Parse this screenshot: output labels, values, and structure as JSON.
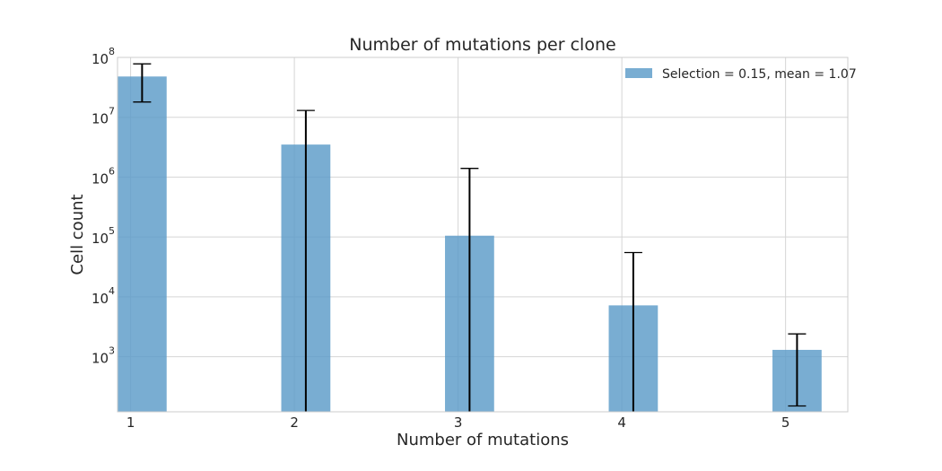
{
  "chart_data": {
    "type": "bar",
    "title": "Number of mutations per clone",
    "xlabel": "Number of mutations",
    "ylabel": "Cell count",
    "yscale": "log",
    "ylim": [
      120,
      100000000
    ],
    "xlim": [
      0.92,
      5.38
    ],
    "x_ticks": [
      "1",
      "2",
      "3",
      "4",
      "5"
    ],
    "y_ticks": [
      {
        "value": 1000,
        "base": "10",
        "exp": "3"
      },
      {
        "value": 10000,
        "base": "10",
        "exp": "4"
      },
      {
        "value": 100000,
        "base": "10",
        "exp": "5"
      },
      {
        "value": 1000000,
        "base": "10",
        "exp": "6"
      },
      {
        "value": 10000000,
        "base": "10",
        "exp": "7"
      },
      {
        "value": 100000000,
        "base": "10",
        "exp": "8"
      }
    ],
    "grid": true,
    "legend": {
      "position": "top-right"
    },
    "bar_color": "#5b9bc8",
    "error_color": "#000000",
    "series": [
      {
        "name": "Selection = 0.15, mean = 1.07",
        "x": [
          1,
          2,
          3,
          4,
          5
        ],
        "values": [
          48000000,
          3500000,
          105000,
          7200,
          1300
        ],
        "error_low": [
          18000000,
          120,
          120,
          120,
          150
        ],
        "error_high": [
          78000000,
          13000000,
          1400000,
          55000,
          2400
        ]
      }
    ]
  }
}
